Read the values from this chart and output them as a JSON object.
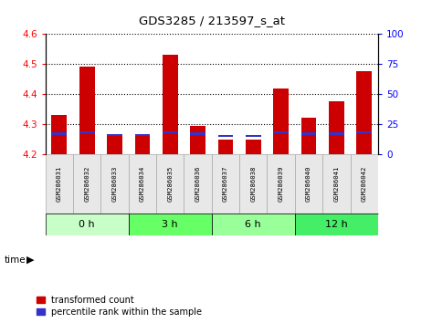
{
  "title": "GDS3285 / 213597_s_at",
  "samples": [
    "GSM286031",
    "GSM286032",
    "GSM286033",
    "GSM286034",
    "GSM286035",
    "GSM286036",
    "GSM286037",
    "GSM286038",
    "GSM286039",
    "GSM286040",
    "GSM286041",
    "GSM286042"
  ],
  "transformed_count": [
    4.33,
    4.49,
    4.265,
    4.26,
    4.53,
    4.295,
    4.25,
    4.25,
    4.42,
    4.32,
    4.375,
    4.475
  ],
  "percentile_rank": [
    17,
    18,
    16,
    16,
    18,
    17,
    15,
    15,
    18,
    17,
    17,
    18
  ],
  "groups": [
    {
      "label": "0 h",
      "start": 0,
      "end": 2
    },
    {
      "label": "3 h",
      "start": 3,
      "end": 5
    },
    {
      "label": "6 h",
      "start": 6,
      "end": 8
    },
    {
      "label": "12 h",
      "start": 9,
      "end": 11
    }
  ],
  "group_colors": [
    "#c8ffc8",
    "#66ff66",
    "#99ff99",
    "#44ee66"
  ],
  "ylim_left": [
    4.2,
    4.6
  ],
  "ylim_right": [
    0,
    100
  ],
  "yticks_left": [
    4.2,
    4.3,
    4.4,
    4.5,
    4.6
  ],
  "yticks_right": [
    0,
    25,
    50,
    75,
    100
  ],
  "bar_color": "#cc0000",
  "blue_color": "#3333cc",
  "baseline": 4.2,
  "bar_width": 0.55,
  "time_label": "time",
  "legend_red": "transformed count",
  "legend_blue": "percentile rank within the sample"
}
